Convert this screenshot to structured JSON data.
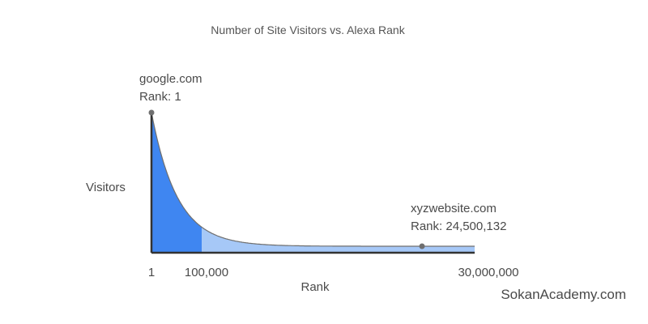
{
  "chart_data": {
    "type": "area",
    "title": "Number of Site Visitors vs. Alexa Rank",
    "xlabel": "Rank",
    "ylabel": "Visitors",
    "x_ticks": [
      "1",
      "100,000",
      "30,000,000"
    ],
    "highlight_until_label": "100,000",
    "points": [
      {
        "label_1": "google.com",
        "label_2": "Rank: 1"
      },
      {
        "label_1": "xyzwebsite.com",
        "label_2": "Rank: 24,500,132"
      }
    ],
    "colors": {
      "highlight_area": "#3f86f1",
      "tail_area": "#a6c8f7",
      "curve": "#6f6f6f",
      "axis": "#333333",
      "marker": "#6f6f6f"
    },
    "grid": false,
    "legend": "none"
  },
  "watermark": "SokanAcademy.com"
}
